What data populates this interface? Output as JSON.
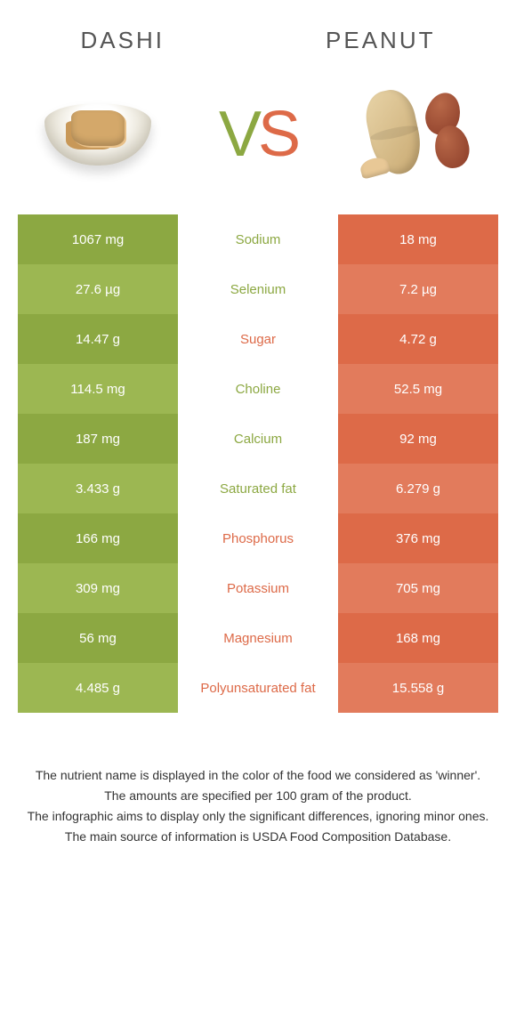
{
  "header": {
    "left_title": "Dashi",
    "right_title": "Peanut"
  },
  "vs": {
    "v": "V",
    "s": "S"
  },
  "colors": {
    "green": "#8ca842",
    "green_alt": "#9cb752",
    "orange": "#dd6a48",
    "orange_alt": "#e27b5c",
    "text": "#333333"
  },
  "rows": [
    {
      "left": "1067 mg",
      "label": "Sodium",
      "right": "18 mg",
      "winner": "left"
    },
    {
      "left": "27.6 µg",
      "label": "Selenium",
      "right": "7.2 µg",
      "winner": "left"
    },
    {
      "left": "14.47 g",
      "label": "Sugar",
      "right": "4.72 g",
      "winner": "right"
    },
    {
      "left": "114.5 mg",
      "label": "Choline",
      "right": "52.5 mg",
      "winner": "left"
    },
    {
      "left": "187 mg",
      "label": "Calcium",
      "right": "92 mg",
      "winner": "left"
    },
    {
      "left": "3.433 g",
      "label": "Saturated fat",
      "right": "6.279 g",
      "winner": "left"
    },
    {
      "left": "166 mg",
      "label": "Phosphorus",
      "right": "376 mg",
      "winner": "right"
    },
    {
      "left": "309 mg",
      "label": "Potassium",
      "right": "705 mg",
      "winner": "right"
    },
    {
      "left": "56 mg",
      "label": "Magnesium",
      "right": "168 mg",
      "winner": "right"
    },
    {
      "left": "4.485 g",
      "label": "Polyunsaturated fat",
      "right": "15.558 g",
      "winner": "right"
    }
  ],
  "footer": {
    "l1": "The nutrient name is displayed in the color of the food we considered as 'winner'.",
    "l2": "The amounts are specified per 100 gram of the product.",
    "l3": "The infographic aims to display only the significant differences, ignoring minor ones.",
    "l4": "The main source of information is USDA Food Composition Database."
  }
}
